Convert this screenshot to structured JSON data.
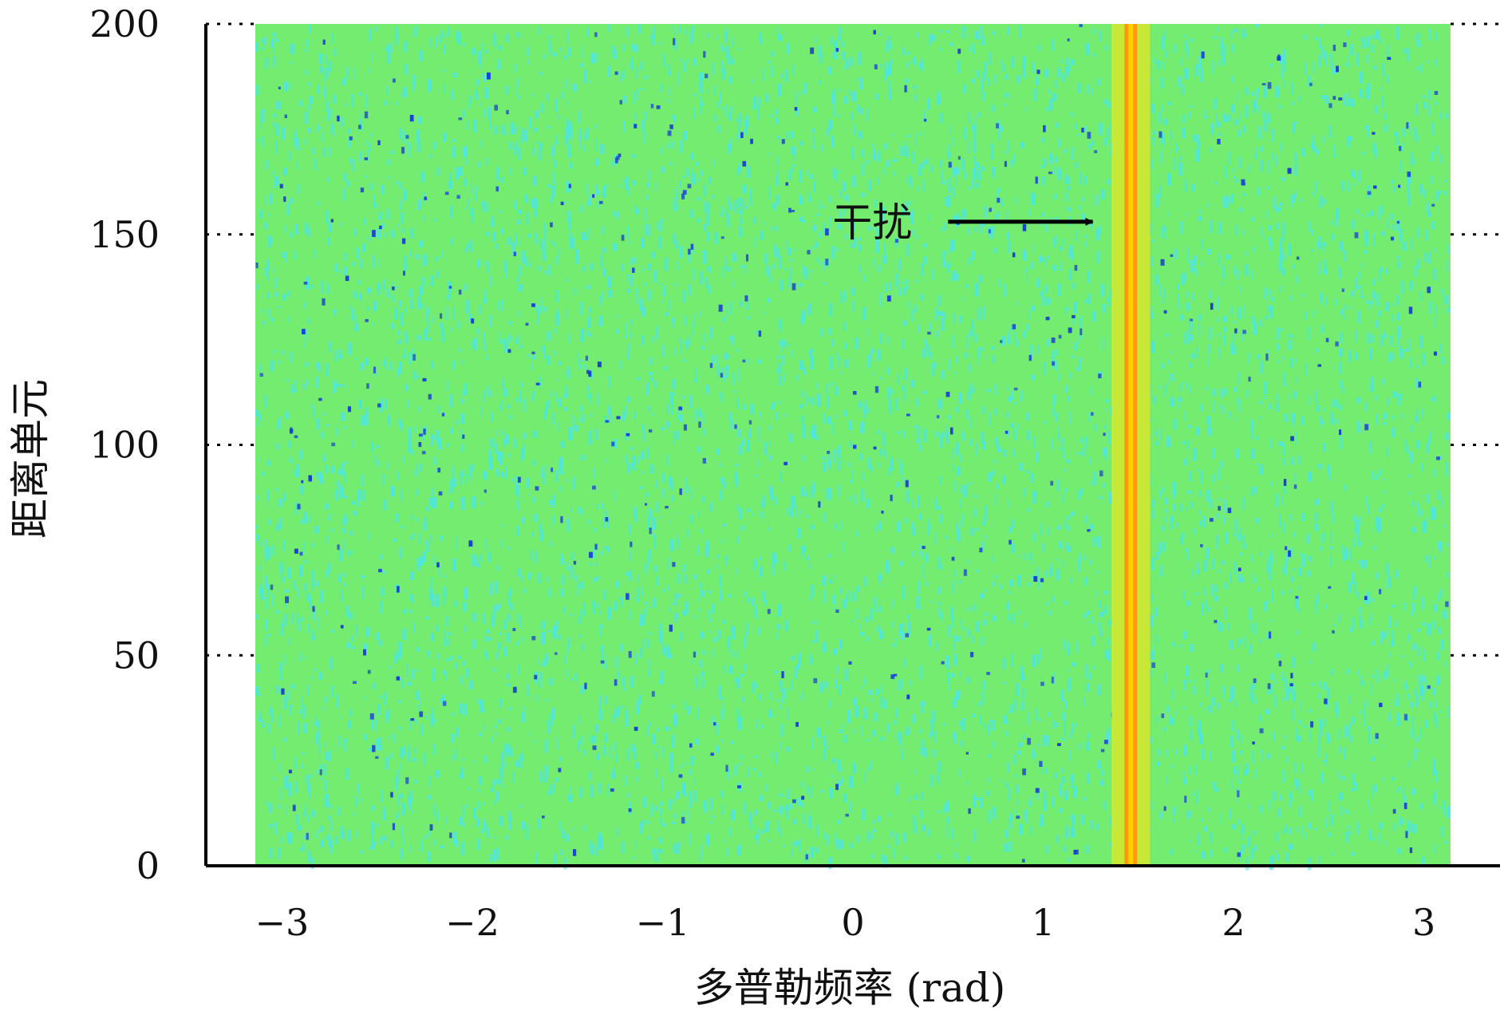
{
  "chart_data": {
    "type": "heatmap",
    "title": "",
    "xlabel": "多普勒频率 (rad)",
    "ylabel": "距离单元",
    "xlim": [
      -3.4,
      3.4
    ],
    "ylim": [
      0,
      200
    ],
    "data_x_extent": [
      -3.14,
      3.14
    ],
    "data_y_extent": [
      0,
      200
    ],
    "x_ticks": [
      -3,
      -2,
      -1,
      0,
      1,
      2,
      3
    ],
    "x_tick_labels": [
      "−3",
      "−2",
      "−1",
      "0",
      "1",
      "2",
      "3"
    ],
    "y_ticks": [
      0,
      50,
      100,
      150,
      200
    ],
    "y_tick_labels": [
      "0",
      "50",
      "100",
      "150",
      "200"
    ],
    "grid": "dotted horizontal lines at y ticks outside the data area",
    "background_color": "#74ec70",
    "noise_colors": [
      "#4de6e0",
      "#1a3fd6"
    ],
    "interference": {
      "x": 1.46,
      "color": "#ff9a10",
      "core_color": "#ffd000",
      "halo_color": "#c8e838"
    },
    "annotation": {
      "text": "干扰",
      "arrow_tail": [
        0.5,
        153
      ],
      "arrow_head": [
        1.26,
        153
      ]
    }
  }
}
